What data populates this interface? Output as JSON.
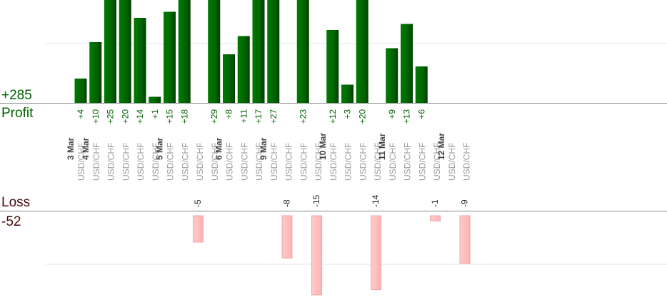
{
  "labels": {
    "profit_total": "+285",
    "profit_title": "Profit",
    "loss_title": "Loss",
    "loss_total": "-52"
  },
  "colors": {
    "profit_bar": "#006400",
    "profit_text": "#006400",
    "loss_bar": "#ffb3b3",
    "loss_bar_edge": "#e89a9a",
    "axis": "#888888",
    "grid": "#e6e6e6",
    "pair_text": "#999999",
    "date_text": "#444444"
  },
  "chart_data": {
    "type": "bar",
    "pair_label": "USD/CHF",
    "series": [
      {
        "name": "Profit",
        "values": [
          4,
          10,
          25,
          20,
          14,
          1,
          15,
          18,
          29,
          8,
          11,
          17,
          27,
          23,
          12,
          3,
          20,
          9,
          13,
          6
        ]
      },
      {
        "name": "Loss",
        "values": [
          -5,
          -8,
          -15,
          -14,
          -1,
          -9
        ]
      }
    ],
    "trades": [
      {
        "date": "3 Mar",
        "value": 4
      },
      {
        "date": "4 Mar",
        "value": 10
      },
      {
        "date": "",
        "value": 25
      },
      {
        "date": "",
        "value": 20
      },
      {
        "date": "",
        "value": 14
      },
      {
        "date": "",
        "value": 1
      },
      {
        "date": "5 Mar",
        "value": 15
      },
      {
        "date": "",
        "value": 18
      },
      {
        "date": "",
        "value": -5
      },
      {
        "date": "",
        "value": 29
      },
      {
        "date": "6 Mar",
        "value": 8
      },
      {
        "date": "",
        "value": 11
      },
      {
        "date": "",
        "value": 17
      },
      {
        "date": "9 Mar",
        "value": 27
      },
      {
        "date": "",
        "value": -8
      },
      {
        "date": "",
        "value": 23
      },
      {
        "date": "",
        "value": -15
      },
      {
        "date": "10 Mar",
        "value": 12
      },
      {
        "date": "",
        "value": 3
      },
      {
        "date": "",
        "value": 20
      },
      {
        "date": "",
        "value": -14
      },
      {
        "date": "11 Mar",
        "value": 9
      },
      {
        "date": "",
        "value": 13
      },
      {
        "date": "",
        "value": 6
      },
      {
        "date": "",
        "value": -1
      },
      {
        "date": "12 Mar",
        "value": 0
      },
      {
        "date": "",
        "value": -9
      }
    ],
    "profit_ylim": [
      0,
      17
    ],
    "loss_ylim": [
      -16,
      0
    ],
    "grid": true
  }
}
